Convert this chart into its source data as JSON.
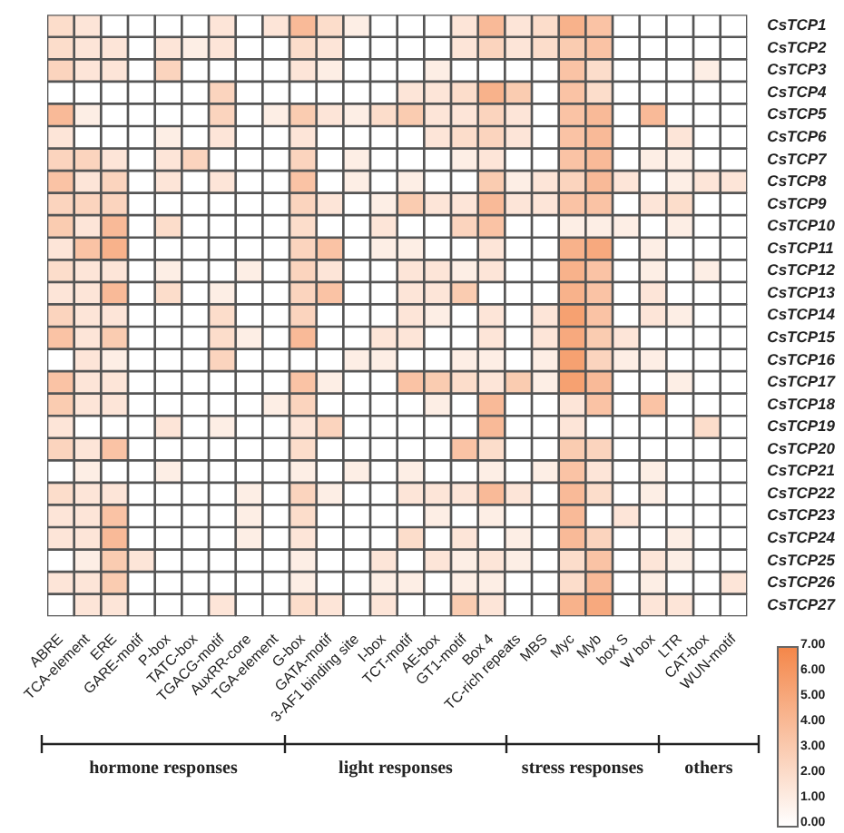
{
  "chart_data": {
    "type": "heatmap",
    "categories": [
      "ABRE",
      "TCA-element",
      "ERE",
      "GARE-motif",
      "P-box",
      "TATC-box",
      "TGACG-motif",
      "AuxRR-core",
      "TGA-element",
      "G-box",
      "GATA-motif",
      "3-AF1 binding site",
      "I-box",
      "TCT-motif",
      "AE-box",
      "GT1-motif",
      "Box 4",
      "TC-rich repeats",
      "MBS",
      "Myc",
      "Myb",
      "box S",
      "W box",
      "LTR",
      "CAT-box",
      "WUN-motif"
    ],
    "y_categories": [
      "CsTCP1",
      "CsTCP2",
      "CsTCP3",
      "CsTCP4",
      "CsTCP5",
      "CsTCP6",
      "CsTCP7",
      "CsTCP8",
      "CsTCP9",
      "CsTCP10",
      "CsTCP11",
      "CsTCP12",
      "CsTCP13",
      "CsTCP14",
      "CsTCP15",
      "CsTCP16",
      "CsTCP17",
      "CsTCP18",
      "CsTCP19",
      "CsTCP20",
      "CsTCP21",
      "CsTCP22",
      "CsTCP23",
      "CsTCP24",
      "CsTCP25",
      "CsTCP26",
      "CsTCP27"
    ],
    "cells": [
      [
        2,
        1.5,
        0,
        0,
        0,
        0,
        1.5,
        0,
        1.5,
        4,
        2,
        1,
        0,
        0,
        0,
        1.5,
        4,
        1.5,
        2,
        4.5,
        3.5,
        0,
        0,
        0,
        0,
        0
      ],
      [
        2,
        1.5,
        1.5,
        0,
        1.5,
        1,
        1.5,
        0,
        0,
        2,
        1.5,
        0,
        0,
        0,
        0,
        1.5,
        2.5,
        1.5,
        2,
        3,
        3.5,
        0,
        0,
        0,
        0,
        0
      ],
      [
        2.5,
        1.5,
        1.5,
        0,
        2.5,
        0,
        0,
        0,
        0,
        1.5,
        1,
        0,
        0,
        0,
        1,
        0,
        0,
        0,
        0,
        3.5,
        2,
        0,
        0,
        0,
        1,
        0
      ],
      [
        0,
        0,
        0,
        0,
        0,
        0,
        2.5,
        0,
        0,
        0,
        0,
        0,
        0,
        1.5,
        1.5,
        2,
        4.5,
        3,
        0,
        3.5,
        2,
        0,
        0,
        0,
        0,
        0
      ],
      [
        4,
        1,
        0,
        0,
        0,
        0,
        2.5,
        0,
        1,
        3,
        1.5,
        1,
        2,
        3,
        1.5,
        1.5,
        2.5,
        1.5,
        0,
        3.5,
        4,
        0,
        4,
        0,
        0,
        0
      ],
      [
        1.5,
        0,
        0,
        0,
        1,
        0,
        1.5,
        0,
        0,
        1.5,
        0,
        0,
        0,
        0,
        1.5,
        2,
        2.5,
        1.5,
        0,
        3.5,
        4,
        0,
        0,
        1.5,
        0,
        0
      ],
      [
        2.5,
        2.5,
        1.5,
        0,
        1.5,
        2.5,
        0,
        0,
        0,
        2.5,
        0,
        1,
        0,
        0,
        0,
        1,
        1.5,
        0,
        0,
        3.5,
        4,
        0,
        1,
        1,
        0,
        0
      ],
      [
        3.5,
        1.5,
        2.5,
        0,
        1.5,
        0,
        1.5,
        0,
        0,
        3.5,
        0,
        1,
        0,
        1,
        0,
        0,
        3,
        1,
        1.5,
        2.5,
        4,
        1.5,
        0,
        1,
        1.5,
        1.5
      ],
      [
        2.5,
        2.5,
        2.5,
        0,
        0,
        0,
        0,
        0,
        0,
        2.5,
        1.5,
        0,
        1,
        3,
        1.5,
        1.5,
        4,
        1.5,
        1.5,
        3.5,
        3.5,
        0,
        1.5,
        2,
        0,
        0
      ],
      [
        3,
        1.5,
        4,
        0,
        2,
        0,
        0,
        0,
        0,
        2,
        0,
        0,
        1.5,
        0,
        0,
        2.5,
        3.5,
        0,
        0,
        1,
        1,
        1,
        0,
        1,
        0,
        0
      ],
      [
        1.5,
        3.5,
        4.5,
        0,
        0,
        0,
        0,
        0,
        0,
        2.5,
        3.5,
        0,
        1,
        1,
        0,
        0,
        1.5,
        0,
        0,
        4.5,
        5,
        0,
        1,
        0,
        0,
        0
      ],
      [
        2,
        1.5,
        1.5,
        0,
        1,
        0,
        0,
        1,
        0,
        2.5,
        1.5,
        0,
        0,
        1.5,
        1.5,
        1,
        1.5,
        0,
        0,
        4.5,
        3.5,
        0,
        1,
        0,
        1,
        0
      ],
      [
        1.5,
        1.5,
        4,
        0,
        2,
        0,
        1,
        0,
        0,
        2.5,
        3.5,
        0,
        0,
        1.5,
        1.5,
        3,
        0,
        0,
        0,
        4.5,
        3.5,
        0,
        1.5,
        0,
        0,
        0
      ],
      [
        2.5,
        1.5,
        1.5,
        0,
        0,
        0,
        2,
        0,
        0,
        2.5,
        0,
        0,
        0,
        1.5,
        1,
        0,
        1.5,
        0,
        1.5,
        5.5,
        3.5,
        0,
        1.5,
        1,
        0,
        0
      ],
      [
        3.5,
        1.5,
        3,
        0,
        0,
        0,
        2,
        1,
        0,
        4,
        0,
        0,
        1.5,
        1.5,
        0,
        0,
        1.5,
        0,
        1.5,
        5,
        3,
        1.5,
        0,
        0,
        0,
        0
      ],
      [
        0,
        1.5,
        1,
        0,
        0,
        0,
        2.5,
        0,
        0,
        0,
        0,
        1,
        1,
        0,
        0,
        1,
        1,
        0,
        1,
        5.5,
        2.5,
        1,
        1,
        0,
        0,
        0
      ],
      [
        3.5,
        1.5,
        1.5,
        0,
        0,
        0,
        0,
        0,
        0,
        3.5,
        1,
        0,
        0,
        3.5,
        3,
        2,
        1.5,
        3,
        1,
        5.5,
        4,
        0,
        0,
        1,
        0,
        0
      ],
      [
        3,
        1.5,
        1.5,
        0,
        0,
        0,
        0,
        0,
        1,
        2.5,
        0,
        0,
        0,
        0,
        1,
        0,
        4,
        0,
        0,
        1.5,
        3.5,
        0,
        3.5,
        0,
        0,
        0
      ],
      [
        1.5,
        0,
        0,
        0,
        1.5,
        0,
        1,
        0,
        0,
        1.5,
        2.5,
        0,
        0,
        0,
        0,
        0,
        4,
        0,
        0,
        1.5,
        0,
        0,
        0,
        0,
        2,
        0
      ],
      [
        2.5,
        1.5,
        3.5,
        0,
        0,
        0,
        0,
        0,
        0,
        2,
        0,
        0,
        0,
        0,
        0,
        3.5,
        2,
        0,
        0,
        3,
        2.5,
        0,
        0,
        0,
        0,
        0
      ],
      [
        0,
        1,
        0,
        0,
        1,
        0,
        0,
        0,
        0,
        1,
        0,
        1,
        0,
        1,
        0,
        0,
        1,
        0,
        1,
        3.5,
        1.5,
        0,
        1,
        0,
        0,
        0
      ],
      [
        2,
        1.5,
        1.5,
        0,
        0,
        0,
        0,
        1,
        0,
        2.5,
        1,
        0,
        0,
        1.5,
        1.5,
        1.5,
        4,
        1.5,
        0,
        4,
        2,
        0,
        1,
        0,
        0,
        0
      ],
      [
        1.5,
        1.5,
        3.5,
        0,
        0,
        0,
        0,
        1,
        0,
        2,
        0,
        0,
        0,
        0,
        1,
        0,
        1,
        0,
        0,
        4,
        0,
        1.5,
        0,
        0,
        0,
        0
      ],
      [
        1.5,
        1.5,
        4,
        0,
        0,
        0,
        0,
        1,
        0,
        1.5,
        0,
        0,
        0,
        2,
        0,
        1.5,
        0,
        1,
        0,
        4,
        2.5,
        0,
        0,
        1,
        0,
        0
      ],
      [
        0,
        1,
        3,
        1.5,
        0,
        0,
        0,
        0,
        0,
        1,
        0,
        0,
        1.5,
        0,
        1.5,
        1,
        1.5,
        1,
        0,
        2,
        3.5,
        0,
        1.5,
        1,
        0,
        0
      ],
      [
        1.5,
        1.5,
        3,
        0,
        0,
        0,
        0,
        0,
        0,
        1,
        0,
        0,
        1,
        1,
        0,
        1,
        1,
        0,
        0,
        2,
        4,
        0,
        1,
        0,
        0,
        1.5
      ],
      [
        0,
        1.5,
        1.5,
        0,
        0,
        0,
        1.5,
        0,
        0,
        2,
        1.5,
        0,
        1.5,
        0,
        0,
        3,
        1.5,
        0,
        0,
        4.5,
        5,
        0,
        1.5,
        1.5,
        0,
        0
      ]
    ],
    "clim": [
      0,
      7
    ],
    "cticks": [
      {
        "value": 0,
        "label": "0.00"
      },
      {
        "value": 1,
        "label": "1.00"
      },
      {
        "value": 2,
        "label": "2.00"
      },
      {
        "value": 3,
        "label": "3.00"
      },
      {
        "value": 4,
        "label": "4.00"
      },
      {
        "value": 5,
        "label": "5.00"
      },
      {
        "value": 6,
        "label": "6.00"
      },
      {
        "value": 7,
        "label": "7.00"
      }
    ],
    "annotations": [
      "hormone responses",
      "light responses",
      "stress responses",
      "others"
    ]
  }
}
